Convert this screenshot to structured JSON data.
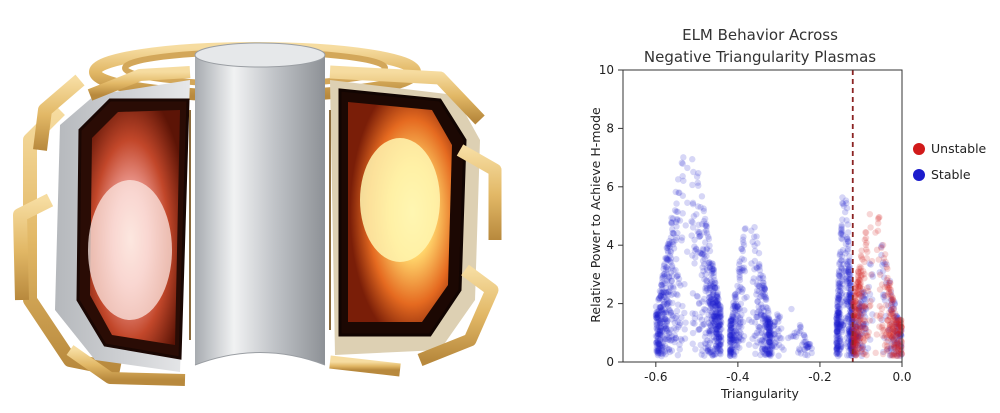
{
  "illustration": {
    "subject": "tokamak-cutaway",
    "colors": {
      "coil": "#e6c07a",
      "coil_dark": "#b8893d",
      "wall": "#c9ccd0",
      "plasma_glow": "#ffe98a",
      "chamber": "#b7431c"
    }
  },
  "chart_data": {
    "type": "scatter",
    "title_lines": [
      "ELM Behavior Across",
      "Negative Triangularity Plasmas"
    ],
    "xlabel": "Triangularity",
    "ylabel": "Relative Power to Achieve H-mode",
    "xlim": [
      -0.68,
      0.0
    ],
    "ylim": [
      0,
      10
    ],
    "xticks": [
      -0.6,
      -0.4,
      -0.2,
      0.0
    ],
    "xtick_labels": [
      "-0.6",
      "-0.4",
      "-0.2",
      "0.0"
    ],
    "yticks": [
      0,
      2,
      4,
      6,
      8,
      10
    ],
    "ytick_labels": [
      "0",
      "2",
      "4",
      "6",
      "8",
      "10"
    ],
    "threshold_line": {
      "x": -0.12,
      "style": "dashed",
      "color": "#8b2323"
    },
    "legend": {
      "placement": "right-outside",
      "entries": [
        {
          "label": "Unstable",
          "color": "#d11a1a"
        },
        {
          "label": "Stable",
          "color": "#1c1ccc"
        }
      ]
    },
    "series": [
      {
        "name": "Stable",
        "color": "#1c1ccc",
        "clusters": [
          {
            "x_range": [
              -0.6,
              -0.44
            ],
            "y_range": [
              0.2,
              7.2
            ],
            "peak_x": -0.52,
            "density": "very high"
          },
          {
            "x_range": [
              -0.42,
              -0.32
            ],
            "y_range": [
              0.2,
              5.0
            ],
            "peak_x": -0.37,
            "density": "high"
          },
          {
            "x_range": [
              -0.32,
              -0.22
            ],
            "y_range": [
              0.2,
              2.2
            ],
            "peak_x": -0.28,
            "density": "low"
          },
          {
            "x_range": [
              -0.16,
              -0.12
            ],
            "y_range": [
              0.2,
              6.0
            ],
            "peak_x": -0.14,
            "density": "high"
          },
          {
            "x_range": [
              -0.12,
              0.0
            ],
            "y_range": [
              0.2,
              4.0
            ],
            "peak_x": -0.06,
            "density": "medium"
          }
        ]
      },
      {
        "name": "Unstable",
        "color": "#d11a1a",
        "clusters": [
          {
            "x_range": [
              -0.12,
              0.0
            ],
            "y_range": [
              0.2,
              5.2
            ],
            "peak_x": -0.07,
            "density": "high"
          }
        ]
      }
    ]
  }
}
